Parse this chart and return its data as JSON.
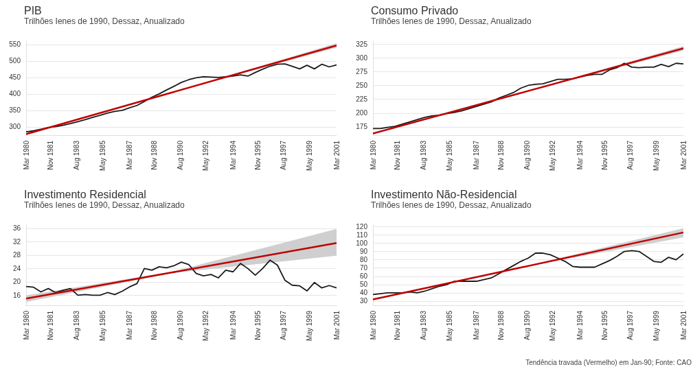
{
  "chart_data": [
    {
      "type": "line",
      "title": "PIB",
      "subtitle": "Trilhões Ienes de 1990, Dessaz, Anualizado",
      "x": [
        "1980-03",
        "1980-09",
        "1981-03",
        "1981-09",
        "1982-03",
        "1982-09",
        "1983-03",
        "1983-09",
        "1984-03",
        "1984-09",
        "1985-03",
        "1985-09",
        "1986-03",
        "1986-09",
        "1987-03",
        "1987-09",
        "1988-03",
        "1988-09",
        "1989-03",
        "1989-09",
        "1990-03",
        "1990-09",
        "1991-03",
        "1991-09",
        "1992-03",
        "1992-09",
        "1993-03",
        "1993-09",
        "1994-03",
        "1994-09",
        "1995-03",
        "1995-09",
        "1996-03",
        "1996-09",
        "1997-03",
        "1997-09",
        "1998-03",
        "1998-09",
        "1999-03",
        "1999-09",
        "2000-03",
        "2000-09",
        "2001-03"
      ],
      "series": [
        {
          "color": "#1a1a1a",
          "values": [
            285,
            288,
            293,
            298,
            301,
            305,
            310,
            316,
            322,
            329,
            335,
            342,
            347,
            350,
            358,
            365,
            377,
            390,
            400,
            412,
            423,
            435,
            443,
            449,
            452,
            451,
            450,
            452,
            454,
            458,
            454,
            465,
            475,
            484,
            490,
            491,
            484,
            476,
            487,
            476,
            490,
            482,
            488
          ]
        },
        {
          "color": "#c00000",
          "x": [
            "1980-03",
            "1990-01",
            "2001-03"
          ],
          "values": [
            278,
            404,
            547
          ],
          "lower": [
            276,
            404,
            540
          ],
          "upper": [
            280,
            404,
            554
          ]
        }
      ],
      "xlim": [
        "1980-03",
        "2001-03"
      ],
      "xticks": [
        {
          "value": "1980-03",
          "label": "Mar 1980"
        },
        {
          "value": "1981-11",
          "label": "Nov 1981"
        },
        {
          "value": "1983-08",
          "label": "Aug 1983"
        },
        {
          "value": "1985-05",
          "label": "May 1985"
        },
        {
          "value": "1987-03",
          "label": "Mar 1987"
        },
        {
          "value": "1988-11",
          "label": "Nov 1988"
        },
        {
          "value": "1990-08",
          "label": "Aug 1990"
        },
        {
          "value": "1992-05",
          "label": "May 1992"
        },
        {
          "value": "1994-03",
          "label": "Mar 1994"
        },
        {
          "value": "1995-11",
          "label": "Nov 1995"
        },
        {
          "value": "1997-08",
          "label": "Aug 1997"
        },
        {
          "value": "1999-05",
          "label": "May 1999"
        },
        {
          "value": "2001-03",
          "label": "Mar 2001"
        }
      ],
      "ylim": [
        275,
        560
      ],
      "yticks": [
        300,
        350,
        400,
        450,
        500,
        550
      ],
      "grid": "y",
      "marker": "none"
    },
    {
      "type": "line",
      "title": "Consumo Privado",
      "subtitle": "Trilhões Ienes de 1990, Dessaz, Anualizado",
      "x": [
        "1980-03",
        "1980-09",
        "1981-03",
        "1981-09",
        "1982-03",
        "1982-09",
        "1983-03",
        "1983-09",
        "1984-03",
        "1984-09",
        "1985-03",
        "1985-09",
        "1986-03",
        "1986-09",
        "1987-03",
        "1987-09",
        "1988-03",
        "1988-09",
        "1989-03",
        "1989-09",
        "1990-03",
        "1990-09",
        "1991-03",
        "1991-09",
        "1992-03",
        "1992-09",
        "1993-03",
        "1993-09",
        "1994-03",
        "1994-09",
        "1995-03",
        "1995-09",
        "1996-03",
        "1996-09",
        "1997-03",
        "1997-09",
        "1998-03",
        "1998-09",
        "1999-03",
        "1999-09",
        "2000-03",
        "2000-09",
        "2001-03"
      ],
      "series": [
        {
          "color": "#1a1a1a",
          "values": [
            172,
            172,
            174,
            176,
            180,
            184,
            188,
            192,
            195,
            196,
            199,
            201,
            204,
            208,
            212,
            216,
            220,
            227,
            232,
            237,
            245,
            250,
            252,
            253,
            257,
            261,
            261,
            262,
            265,
            268,
            270,
            270,
            278,
            282,
            290,
            283,
            282,
            283,
            283,
            288,
            284,
            290,
            289
          ]
        },
        {
          "color": "#c00000",
          "x": [
            "1980-03",
            "1990-01",
            "2001-03"
          ],
          "values": [
            163,
            235,
            317
          ],
          "lower": [
            161,
            235,
            313
          ],
          "upper": [
            165,
            235,
            321
          ]
        }
      ],
      "xlim": [
        "1980-03",
        "2001-03"
      ],
      "xticks": [
        {
          "value": "1980-03",
          "label": "Mar 1980"
        },
        {
          "value": "1981-11",
          "label": "Nov 1981"
        },
        {
          "value": "1983-08",
          "label": "Aug 1983"
        },
        {
          "value": "1985-05",
          "label": "May 1985"
        },
        {
          "value": "1987-03",
          "label": "Mar 1987"
        },
        {
          "value": "1988-11",
          "label": "Nov 1988"
        },
        {
          "value": "1990-08",
          "label": "Aug 1990"
        },
        {
          "value": "1992-05",
          "label": "May 1992"
        },
        {
          "value": "1994-03",
          "label": "Mar 1994"
        },
        {
          "value": "1995-11",
          "label": "Nov 1995"
        },
        {
          "value": "1997-08",
          "label": "Aug 1997"
        },
        {
          "value": "1999-05",
          "label": "May 1999"
        },
        {
          "value": "2001-03",
          "label": "Mar 2001"
        }
      ],
      "ylim": [
        160,
        330
      ],
      "yticks": [
        175,
        200,
        225,
        250,
        275,
        300,
        325
      ],
      "grid": "y",
      "marker": "none"
    },
    {
      "type": "line",
      "title": "Investimento Residencial",
      "subtitle": "Trilhões Ienes de 1990, Dessaz, Anualizado",
      "x": [
        "1980-03",
        "1980-09",
        "1981-03",
        "1981-09",
        "1982-03",
        "1982-09",
        "1983-03",
        "1983-09",
        "1984-03",
        "1984-09",
        "1985-03",
        "1985-09",
        "1986-03",
        "1986-09",
        "1987-03",
        "1987-09",
        "1988-03",
        "1988-09",
        "1989-03",
        "1989-09",
        "1990-03",
        "1990-09",
        "1991-03",
        "1991-09",
        "1992-03",
        "1992-09",
        "1993-03",
        "1993-09",
        "1994-03",
        "1994-09",
        "1995-03",
        "1995-09",
        "1996-03",
        "1996-09",
        "1997-03",
        "1997-09",
        "1998-03",
        "1998-09",
        "1999-03",
        "1999-09",
        "2000-03",
        "2000-09",
        "2001-03"
      ],
      "series": [
        {
          "color": "#1a1a1a",
          "values": [
            18.6,
            18.4,
            17.0,
            18.0,
            16.8,
            17.5,
            18.0,
            16.0,
            16.2,
            16.0,
            16.0,
            16.8,
            16.2,
            17.2,
            18.5,
            19.5,
            24.0,
            23.5,
            24.5,
            24.2,
            24.8,
            25.9,
            25.2,
            22.5,
            21.8,
            22.2,
            21.2,
            23.5,
            23.0,
            25.5,
            24.0,
            22.0,
            24.0,
            26.5,
            25.0,
            20.5,
            19.0,
            18.8,
            17.3,
            19.8,
            18.2,
            18.9,
            18.2
          ]
        },
        {
          "color": "#c00000",
          "x": [
            "1980-03",
            "1990-01",
            "2001-03"
          ],
          "values": [
            15.0,
            22.8,
            31.6
          ],
          "lower": [
            14.0,
            22.6,
            27.8
          ],
          "upper": [
            16.0,
            23.0,
            35.8
          ]
        }
      ],
      "xlim": [
        "1980-03",
        "2001-03"
      ],
      "xticks": [
        {
          "value": "1980-03",
          "label": "Mar 1980"
        },
        {
          "value": "1981-11",
          "label": "Nov 1981"
        },
        {
          "value": "1983-08",
          "label": "Aug 1983"
        },
        {
          "value": "1985-05",
          "label": "May 1985"
        },
        {
          "value": "1987-03",
          "label": "Mar 1987"
        },
        {
          "value": "1988-11",
          "label": "Nov 1988"
        },
        {
          "value": "1990-08",
          "label": "Aug 1990"
        },
        {
          "value": "1992-05",
          "label": "May 1992"
        },
        {
          "value": "1994-03",
          "label": "Mar 1994"
        },
        {
          "value": "1995-11",
          "label": "Nov 1995"
        },
        {
          "value": "1997-08",
          "label": "Aug 1997"
        },
        {
          "value": "1999-05",
          "label": "May 1999"
        },
        {
          "value": "2001-03",
          "label": "Mar 2001"
        }
      ],
      "ylim": [
        13,
        37
      ],
      "yticks": [
        16,
        20,
        24,
        28,
        32,
        36
      ],
      "grid": "y",
      "marker": "none"
    },
    {
      "type": "line",
      "title": "Investimento Não-Residencial",
      "subtitle": "Trilhões Ienes de 1990, Dessaz, Anualizado",
      "x": [
        "1980-03",
        "1980-09",
        "1981-03",
        "1981-09",
        "1982-03",
        "1982-09",
        "1983-03",
        "1983-09",
        "1984-03",
        "1984-09",
        "1985-03",
        "1985-09",
        "1986-03",
        "1986-09",
        "1987-03",
        "1987-09",
        "1988-03",
        "1988-09",
        "1989-03",
        "1989-09",
        "1990-03",
        "1990-09",
        "1991-03",
        "1991-09",
        "1992-03",
        "1992-09",
        "1993-03",
        "1993-09",
        "1994-03",
        "1994-09",
        "1995-03",
        "1995-09",
        "1996-03",
        "1996-09",
        "1997-03",
        "1997-09",
        "1998-03",
        "1998-09",
        "1999-03",
        "1999-09",
        "2000-03",
        "2000-09",
        "2001-03"
      ],
      "series": [
        {
          "color": "#1a1a1a",
          "values": [
            38,
            39,
            40,
            40,
            40,
            41,
            40,
            42,
            45,
            48,
            50,
            54,
            54,
            54,
            54,
            56,
            58,
            63,
            68,
            73,
            78,
            82,
            88,
            88,
            86,
            82,
            78,
            72,
            71,
            71,
            71,
            75,
            79,
            84,
            90,
            91,
            90,
            84,
            78,
            77,
            83,
            80,
            87
          ]
        },
        {
          "color": "#c00000",
          "x": [
            "1980-03",
            "1990-01",
            "2001-03"
          ],
          "values": [
            32,
            70,
            113
          ],
          "lower": [
            31,
            70,
            107
          ],
          "upper": [
            33,
            70,
            118
          ]
        }
      ],
      "xlim": [
        "1980-03",
        "2001-03"
      ],
      "xticks": [
        {
          "value": "1980-03",
          "label": "Mar 1980"
        },
        {
          "value": "1981-11",
          "label": "Nov 1981"
        },
        {
          "value": "1983-08",
          "label": "Aug 1983"
        },
        {
          "value": "1985-05",
          "label": "May 1985"
        },
        {
          "value": "1987-03",
          "label": "Mar 1987"
        },
        {
          "value": "1988-11",
          "label": "Nov 1988"
        },
        {
          "value": "1990-08",
          "label": "Aug 1990"
        },
        {
          "value": "1992-05",
          "label": "May 1992"
        },
        {
          "value": "1994-03",
          "label": "Mar 1994"
        },
        {
          "value": "1995-11",
          "label": "Nov 1995"
        },
        {
          "value": "1997-08",
          "label": "Aug 1997"
        },
        {
          "value": "1999-05",
          "label": "May 1999"
        },
        {
          "value": "2001-03",
          "label": "Mar 2001"
        }
      ],
      "ylim": [
        25,
        122
      ],
      "yticks": [
        30,
        40,
        50,
        60,
        70,
        80,
        90,
        100,
        110,
        120
      ],
      "grid": "y",
      "marker": "none",
      "annotations": [
        "Tendência travada (Vermelho) em Jan-90; Fonte: CAO"
      ]
    }
  ]
}
